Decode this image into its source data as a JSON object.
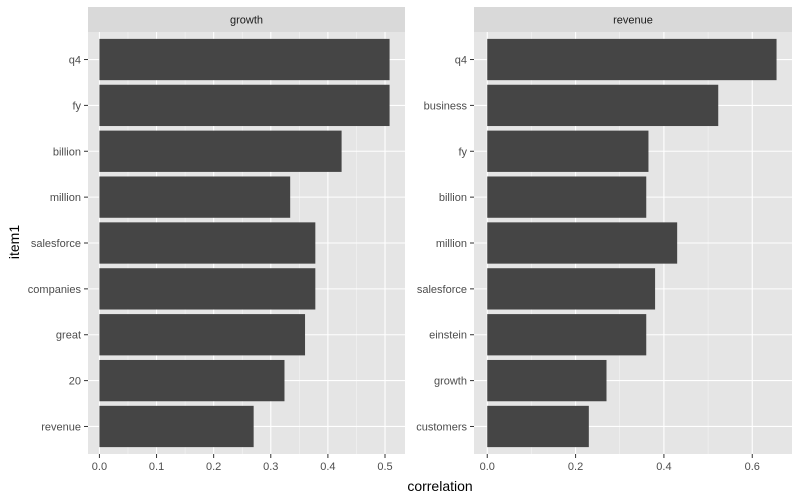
{
  "colors": {
    "panel_background": "#e5e5e5",
    "strip_background": "#d9d9d9",
    "grid_major": "#ffffff",
    "bar_fill": "#454545",
    "tick_label": "#4d4d4d"
  },
  "chart_data": {
    "type": "bar",
    "orientation": "horizontal",
    "xlabel": "correlation",
    "ylabel": "item1",
    "grid": true,
    "facets": [
      {
        "title": "growth",
        "xlim": [
          -0.02,
          0.535
        ],
        "x_ticks": [
          0,
          0.1,
          0.2,
          0.3,
          0.4,
          0.5
        ],
        "x_tick_labels": [
          "0.0",
          "0.1",
          "0.2",
          "0.3",
          "0.4",
          "0.5"
        ],
        "categories": [
          "q4",
          "fy",
          "billion",
          "million",
          "salesforce",
          "companies",
          "great",
          "20",
          "revenue"
        ],
        "values": [
          0.508,
          0.508,
          0.424,
          0.334,
          0.378,
          0.378,
          0.36,
          0.324,
          0.27
        ]
      },
      {
        "title": "revenue",
        "xlim": [
          -0.03,
          0.69
        ],
        "x_ticks": [
          0,
          0.2,
          0.4,
          0.6
        ],
        "x_tick_labels": [
          "0.0",
          "0.2",
          "0.4",
          "0.6"
        ],
        "categories": [
          "q4",
          "business",
          "fy",
          "billion",
          "million",
          "salesforce",
          "einstein",
          "growth",
          "customers"
        ],
        "values": [
          0.655,
          0.523,
          0.365,
          0.36,
          0.43,
          0.38,
          0.36,
          0.27,
          0.23
        ]
      }
    ]
  }
}
